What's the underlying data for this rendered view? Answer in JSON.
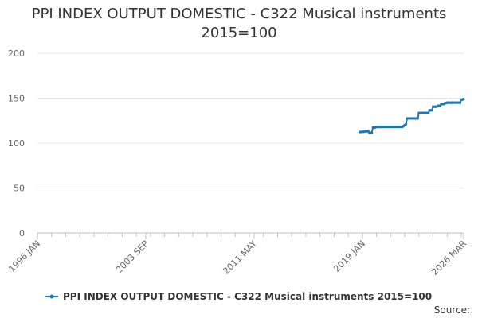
{
  "chart_data": {
    "type": "line",
    "title_lines": [
      "PPI INDEX OUTPUT DOMESTIC - C322 Musical instruments",
      "2015=100"
    ],
    "xlabel": "",
    "ylabel": "",
    "ylim": [
      0,
      200
    ],
    "yticks": [
      "0",
      "50",
      "100",
      "150",
      "200"
    ],
    "xlim": [
      "1996-01",
      "2026-03"
    ],
    "xtick_labels": [
      {
        "date": "1996-01",
        "label": "1996 JAN"
      },
      {
        "date": "2003-09",
        "label": "2003 SEP"
      },
      {
        "date": "2011-05",
        "label": "2011 MAY"
      },
      {
        "date": "2019-01",
        "label": "2019 JAN"
      },
      {
        "date": "2026-03",
        "label": "2026 MAR"
      }
    ],
    "grid": "horizontal",
    "legend_position": "bottom",
    "series": [
      {
        "name": "PPI INDEX OUTPUT DOMESTIC - C322 Musical instruments 2015=100",
        "color": "#1f77b4",
        "points": [
          [
            "2018-11",
            112.4
          ],
          [
            "2018-12",
            112.4
          ],
          [
            "2019-01",
            112.6
          ],
          [
            "2019-02",
            112.6
          ],
          [
            "2019-03",
            113.0
          ],
          [
            "2019-04",
            113.0
          ],
          [
            "2019-05",
            113.0
          ],
          [
            "2019-06",
            113.0
          ],
          [
            "2019-07",
            111.5
          ],
          [
            "2019-08",
            111.5
          ],
          [
            "2019-09",
            111.5
          ],
          [
            "2019-10",
            117.5
          ],
          [
            "2019-11",
            117.5
          ],
          [
            "2019-12",
            117.5
          ],
          [
            "2020-01",
            118.0
          ],
          [
            "2020-02",
            118.0
          ],
          [
            "2020-03",
            118.0
          ],
          [
            "2020-04",
            118.0
          ],
          [
            "2020-05",
            118.0
          ],
          [
            "2020-06",
            118.0
          ],
          [
            "2020-07",
            118.0
          ],
          [
            "2020-08",
            118.0
          ],
          [
            "2020-09",
            118.0
          ],
          [
            "2020-10",
            118.0
          ],
          [
            "2020-11",
            118.0
          ],
          [
            "2020-12",
            118.0
          ],
          [
            "2021-01",
            118.0
          ],
          [
            "2021-02",
            118.0
          ],
          [
            "2021-03",
            118.0
          ],
          [
            "2021-04",
            118.0
          ],
          [
            "2021-05",
            118.0
          ],
          [
            "2021-06",
            118.0
          ],
          [
            "2021-07",
            118.0
          ],
          [
            "2021-08",
            118.0
          ],
          [
            "2021-09",
            118.0
          ],
          [
            "2021-10",
            118.0
          ],
          [
            "2021-11",
            118.0
          ],
          [
            "2021-12",
            119.0
          ],
          [
            "2022-01",
            120.0
          ],
          [
            "2022-02",
            121.0
          ],
          [
            "2022-03",
            127.5
          ],
          [
            "2022-04",
            127.5
          ],
          [
            "2022-05",
            127.5
          ],
          [
            "2022-06",
            127.5
          ],
          [
            "2022-07",
            127.5
          ],
          [
            "2022-08",
            127.5
          ],
          [
            "2022-09",
            127.5
          ],
          [
            "2022-10",
            127.5
          ],
          [
            "2022-11",
            127.5
          ],
          [
            "2022-12",
            127.5
          ],
          [
            "2023-01",
            133.5
          ],
          [
            "2023-02",
            133.5
          ],
          [
            "2023-03",
            133.5
          ],
          [
            "2023-04",
            133.5
          ],
          [
            "2023-05",
            133.5
          ],
          [
            "2023-06",
            133.5
          ],
          [
            "2023-07",
            133.5
          ],
          [
            "2023-08",
            133.5
          ],
          [
            "2023-09",
            133.5
          ],
          [
            "2023-10",
            136.5
          ],
          [
            "2023-11",
            136.5
          ],
          [
            "2023-12",
            136.5
          ],
          [
            "2024-01",
            140.5
          ],
          [
            "2024-02",
            140.5
          ],
          [
            "2024-03",
            140.5
          ],
          [
            "2024-04",
            140.5
          ],
          [
            "2024-05",
            141.5
          ],
          [
            "2024-06",
            141.5
          ],
          [
            "2024-07",
            141.5
          ],
          [
            "2024-08",
            143.5
          ],
          [
            "2024-09",
            143.5
          ],
          [
            "2024-10",
            143.5
          ],
          [
            "2024-11",
            144.5
          ],
          [
            "2024-12",
            144.5
          ],
          [
            "2025-01",
            145.0
          ],
          [
            "2025-02",
            145.0
          ],
          [
            "2025-03",
            145.0
          ],
          [
            "2025-04",
            145.0
          ],
          [
            "2025-05",
            145.0
          ],
          [
            "2025-06",
            145.0
          ],
          [
            "2025-07",
            145.0
          ],
          [
            "2025-08",
            145.0
          ],
          [
            "2025-09",
            145.0
          ],
          [
            "2025-10",
            145.0
          ],
          [
            "2025-11",
            145.0
          ],
          [
            "2025-12",
            145.0
          ],
          [
            "2026-01",
            148.5
          ],
          [
            "2026-02",
            148.5
          ],
          [
            "2026-03",
            149.0
          ]
        ]
      }
    ]
  },
  "source": {
    "label": "Source:"
  }
}
